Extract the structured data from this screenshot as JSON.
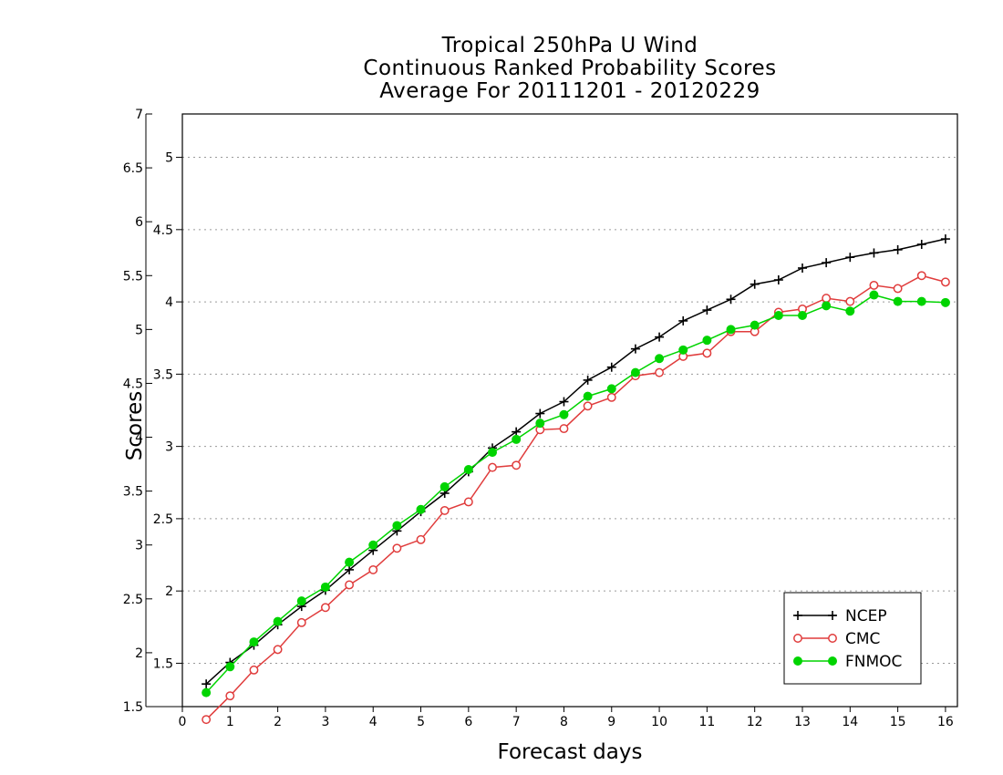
{
  "chart_data": {
    "type": "line",
    "title": [
      "Tropical 250hPa U Wind",
      "Continuous Ranked Probability Scores",
      "Average For 20111201 - 20120229"
    ],
    "xlabel": "Forecast days",
    "ylabel": "Scores",
    "xlim": [
      0,
      16.25
    ],
    "xticks": [
      "0",
      "1",
      "2",
      "3",
      "4",
      "5",
      "6",
      "7",
      "8",
      "9",
      "10",
      "11",
      "12",
      "13",
      "14",
      "15",
      "16"
    ],
    "y_axes": [
      {
        "ylim": [
          1.5,
          7
        ],
        "ticks": [
          "1.5",
          "2",
          "2.5",
          "3",
          "3.5",
          "4",
          "4.5",
          "5",
          "5.5",
          "6",
          "6.5",
          "7"
        ]
      },
      {
        "ylim": [
          1.2,
          5.3
        ],
        "ticks": [
          "1.5",
          "2",
          "2.5",
          "3",
          "3.5",
          "4",
          "4.5",
          "5"
        ]
      }
    ],
    "grid": "horizontal dotted (inner axis ticks)",
    "legend_position": "bottom-right",
    "x": [
      0.5,
      1,
      1.5,
      2,
      2.5,
      3,
      3.5,
      4,
      4.5,
      5,
      5.5,
      6,
      6.5,
      7,
      7.5,
      8,
      8.5,
      9,
      9.5,
      10,
      10.5,
      11,
      11.5,
      12,
      12.5,
      13,
      13.5,
      14,
      14.5,
      15,
      15.5,
      16
    ],
    "series": [
      {
        "name": "NCEP",
        "color": "#000000",
        "marker": "plus",
        "values": [
          1.71,
          1.91,
          2.07,
          2.26,
          2.43,
          2.58,
          2.77,
          2.95,
          3.13,
          3.31,
          3.48,
          3.68,
          3.9,
          4.05,
          4.22,
          4.33,
          4.53,
          4.65,
          4.82,
          4.93,
          5.08,
          5.18,
          5.28,
          5.42,
          5.46,
          5.57,
          5.62,
          5.67,
          5.71,
          5.74,
          5.79,
          5.84
        ]
      },
      {
        "name": "CMC",
        "color": "#e03c3c",
        "marker": "open-circle",
        "values": [
          1.38,
          1.6,
          1.84,
          2.03,
          2.28,
          2.42,
          2.63,
          2.77,
          2.97,
          3.05,
          3.32,
          3.4,
          3.72,
          3.74,
          4.07,
          4.08,
          4.29,
          4.37,
          4.57,
          4.6,
          4.75,
          4.78,
          4.98,
          4.98,
          5.16,
          5.19,
          5.29,
          5.26,
          5.41,
          5.38,
          5.5,
          5.44
        ]
      },
      {
        "name": "FNMOC",
        "color": "#00d400",
        "marker": "filled-circle",
        "values": [
          1.63,
          1.87,
          2.1,
          2.29,
          2.48,
          2.61,
          2.84,
          3.0,
          3.18,
          3.33,
          3.54,
          3.7,
          3.86,
          3.98,
          4.13,
          4.21,
          4.38,
          4.45,
          4.6,
          4.73,
          4.81,
          4.9,
          5.0,
          5.04,
          5.13,
          5.13,
          5.22,
          5.17,
          5.32,
          5.26,
          5.26,
          5.25
        ]
      }
    ]
  }
}
